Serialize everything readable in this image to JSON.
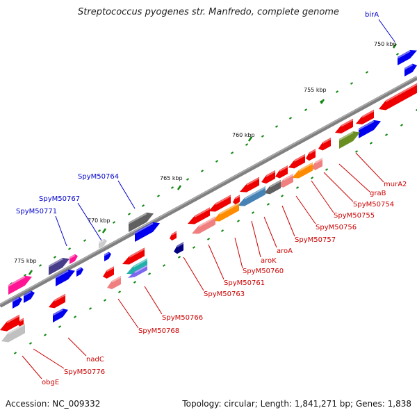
{
  "title": "Streptococcus pyogenes str. Manfredo, complete genome",
  "footer": {
    "accession": "Accession: NC_009332",
    "summary": "Topology: circular; Length: 1,841,271 bp; Genes: 1,838"
  },
  "colors": {
    "backbone": "#808080",
    "forward_label": "#0000cc",
    "reverse_label": "#cc0000",
    "tick": "#118811"
  },
  "scale_labels": [
    {
      "text": "750 kbp",
      "pos": 750
    },
    {
      "text": "755 kbp",
      "pos": 755
    },
    {
      "text": "760 kbp",
      "pos": 760
    },
    {
      "text": "765 kbp",
      "pos": 765
    },
    {
      "text": "770 kbp",
      "pos": 770
    },
    {
      "text": "775 kbp",
      "pos": 775
    }
  ],
  "labels": [
    {
      "text": "birA",
      "color": "#0000cc"
    },
    {
      "text": "SpyM50764",
      "color": "#0000cc"
    },
    {
      "text": "SpyM50767",
      "color": "#0000cc"
    },
    {
      "text": "SpyM50771",
      "color": "#0000cc"
    },
    {
      "text": "murA2",
      "color": "#cc0000"
    },
    {
      "text": "graB",
      "color": "#cc0000"
    },
    {
      "text": "SpyM50754",
      "color": "#cc0000"
    },
    {
      "text": "SpyM50755",
      "color": "#cc0000"
    },
    {
      "text": "SpyM50756",
      "color": "#cc0000"
    },
    {
      "text": "SpyM50757",
      "color": "#cc0000"
    },
    {
      "text": "aroA",
      "color": "#cc0000"
    },
    {
      "text": "aroK",
      "color": "#cc0000"
    },
    {
      "text": "SpyM50760",
      "color": "#cc0000"
    },
    {
      "text": "SpyM50761",
      "color": "#cc0000"
    },
    {
      "text": "SpyM50763",
      "color": "#cc0000"
    },
    {
      "text": "SpyM50766",
      "color": "#cc0000"
    },
    {
      "text": "SpyM50768",
      "color": "#cc0000"
    },
    {
      "text": "nadC",
      "color": "#cc0000"
    },
    {
      "text": "SpyM50776",
      "color": "#cc0000"
    },
    {
      "text": "obgE",
      "color": "#cc0000"
    }
  ]
}
